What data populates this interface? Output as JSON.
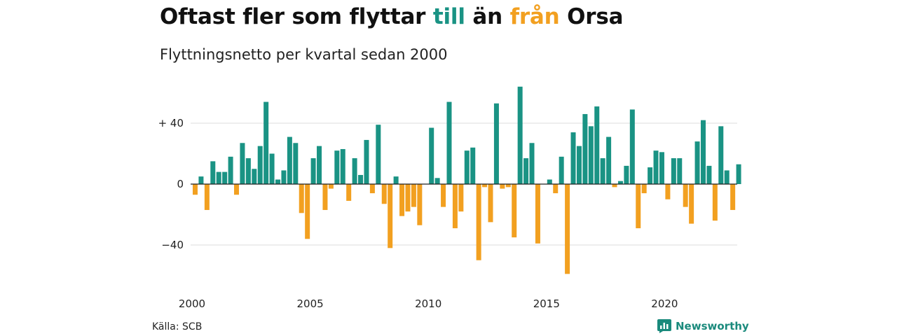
{
  "title": {
    "part1": "Oftast fler som flyttar ",
    "to_word": "till",
    "part2": " än ",
    "from_word": "från",
    "part3": " Orsa"
  },
  "subtitle": "Flyttningsnetto per kvartal sedan 2000",
  "source": "Källa: SCB",
  "brand": {
    "name": "Newsworthy",
    "icon": "newsworthy-logo-icon"
  },
  "colors": {
    "positive": "#1a9384",
    "negative": "#f2a020",
    "grid": "#dddddd",
    "zero_line": "#222222"
  },
  "chart_data": {
    "type": "bar",
    "title": "Oftast fler som flyttar till än från Orsa",
    "subtitle": "Flyttningsnetto per kvartal sedan 2000",
    "xlabel": "",
    "ylabel": "",
    "start_year": 2000,
    "periods_per_year": 4,
    "ylim": [
      -60,
      62
    ],
    "y_ticks": [
      40,
      0,
      -40
    ],
    "y_tick_labels": [
      "+ 40",
      "0",
      "−40"
    ],
    "x_ticks": [
      2000,
      2005,
      2010,
      2015,
      2020
    ],
    "x_tick_labels": [
      "2000",
      "2005",
      "2010",
      "2015",
      "2020"
    ],
    "grid": true,
    "legend": "none (colors explained in title)",
    "values": [
      -7,
      5,
      -17,
      15,
      8,
      8,
      18,
      -7,
      27,
      17,
      10,
      25,
      54,
      20,
      3,
      9,
      31,
      27,
      -19,
      -36,
      17,
      25,
      -17,
      -3,
      22,
      23,
      -11,
      17,
      6,
      29,
      -6,
      39,
      -13,
      -42,
      5,
      -21,
      -18,
      -15,
      -27,
      0,
      37,
      4,
      -15,
      54,
      -29,
      -18,
      22,
      24,
      -50,
      -2,
      -25,
      53,
      -3,
      -2,
      -35,
      64,
      17,
      27,
      -39,
      0,
      3,
      -6,
      18,
      -59,
      34,
      25,
      46,
      38,
      51,
      17,
      31,
      -2,
      2,
      12,
      49,
      -29,
      -6,
      11,
      22,
      21,
      -10,
      17,
      17,
      -15,
      -26,
      28,
      42,
      12,
      -24,
      38,
      9,
      -17,
      13
    ]
  }
}
